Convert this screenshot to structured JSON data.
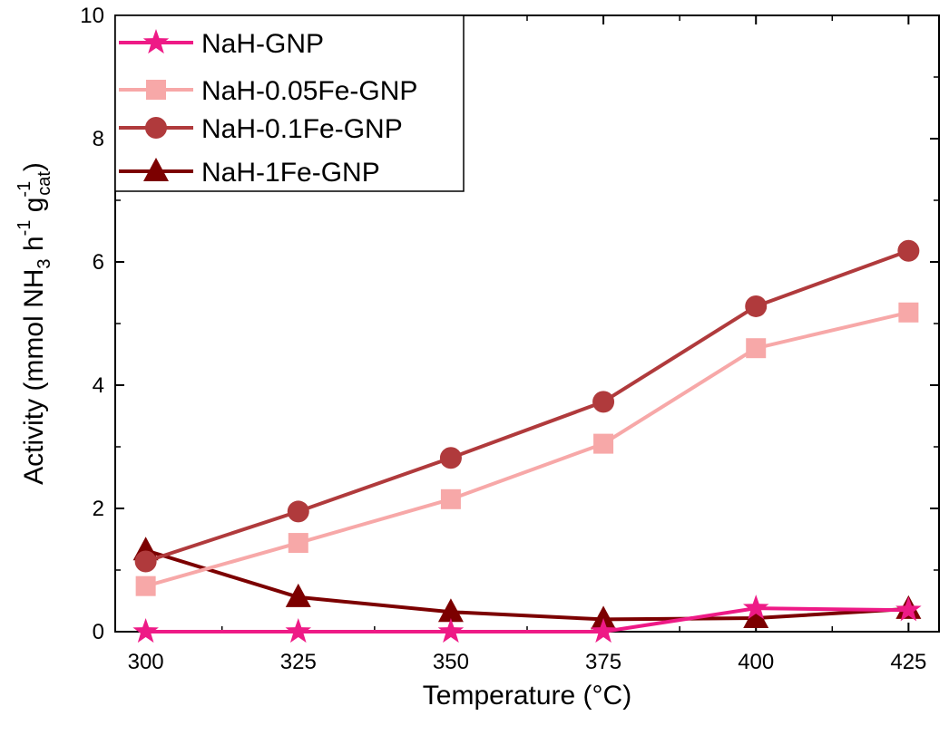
{
  "chart_data": {
    "type": "line",
    "title": "",
    "xlabel": "Temperature (°C)",
    "ylabel": {
      "prefix": "Activity (mmol NH",
      "nh_sub": "3",
      "h": " h",
      "h_sup": "-1",
      "g": " g",
      "g_sup": "-1",
      "g_sub": "cat",
      "suffix": ")"
    },
    "x": [
      300,
      325,
      350,
      375,
      400,
      425
    ],
    "xlim": [
      295,
      430
    ],
    "ylim": [
      0,
      10
    ],
    "xticks": [
      300,
      325,
      350,
      375,
      400,
      425
    ],
    "yticks": [
      0,
      2,
      4,
      6,
      8,
      10
    ],
    "grid": false,
    "legend_position": "top-left",
    "series": [
      {
        "name": "NaH-GNP",
        "marker": "star",
        "color": "#ee1a86",
        "values": [
          0.0,
          0.0,
          0.0,
          0.0,
          0.38,
          0.35
        ]
      },
      {
        "name": "NaH-0.05Fe-GNP",
        "marker": "square",
        "color": "#f7a8a8",
        "values": [
          0.74,
          1.44,
          2.15,
          3.05,
          4.6,
          5.18
        ]
      },
      {
        "name": "NaH-0.1Fe-GNP",
        "marker": "circle",
        "color": "#b03a3c",
        "values": [
          1.14,
          1.95,
          2.82,
          3.73,
          5.28,
          6.18
        ]
      },
      {
        "name": "NaH-1Fe-GNP",
        "marker": "triangle",
        "color": "#7c0000",
        "values": [
          1.32,
          0.56,
          0.32,
          0.2,
          0.22,
          0.37
        ]
      }
    ]
  }
}
